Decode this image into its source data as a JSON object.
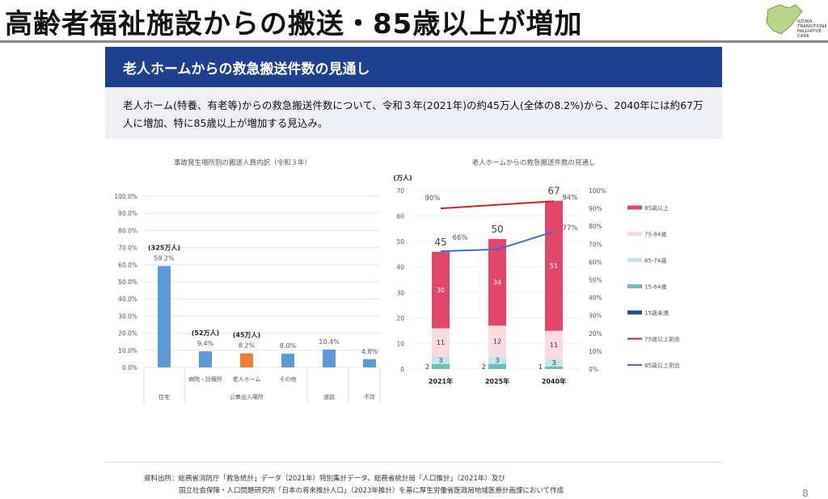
{
  "header": {
    "title": "高齢者福祉施設からの搬送・85歳以上が増加",
    "logo_text": "IIZUKA TRANSITIONAL & PALLIATIVE CARE"
  },
  "slide": {
    "banner": "老人ホームからの救急搬送件数の見通し",
    "summary": "老人ホーム(特養、有老等)からの救急搬送件数について、令和３年(2021年)の約45万人(全体の8.2%)から、2040年には約67万人に増加、特に85歳以上が増加する見込み。",
    "source_line1": "資料出所：総務省消防庁「救急統計」データ（2021年）特別集計データ、総務省統計局「人口推計」（2021年）及び",
    "source_line2": "国立社会保障・人口問題研究所「日本の将来推計人口」（2023年推計）を基に厚生労働省医政局地域医療計画課において作成",
    "page_number": "8"
  },
  "chart_data": [
    {
      "type": "bar",
      "title": "事故発生場所別の搬送人員内訳（令和３年）",
      "categories": [
        "住宅",
        "病院・診療所",
        "老人ホーム",
        "その他",
        "道路",
        "不詳"
      ],
      "groups": [
        "住宅",
        "公衆出入場所",
        "公衆出入場所",
        "公衆出入場所",
        "道路",
        "不詳"
      ],
      "group_labels": [
        "住宅",
        "公衆出入場所",
        "道路",
        "不詳"
      ],
      "values": [
        59.2,
        9.4,
        8.2,
        8.0,
        10.4,
        4.8
      ],
      "value_labels": [
        "59.2%",
        "9.4%",
        "8.2%",
        "8.0%",
        "10.4%",
        "4.8%"
      ],
      "count_labels": [
        "(325万人)",
        "(52万人)",
        "(45万人)",
        "",
        "",
        ""
      ],
      "colors": [
        "#5b9bd5",
        "#5b9bd5",
        "#ed7d31",
        "#5b9bd5",
        "#5b9bd5",
        "#5b9bd5"
      ],
      "ylim": [
        0,
        100
      ],
      "yticks": [
        "0.0%",
        "10.0%",
        "20.0%",
        "30.0%",
        "40.0%",
        "50.0%",
        "60.0%",
        "70.0%",
        "80.0%",
        "90.0%",
        "100.0%"
      ],
      "grid": true
    },
    {
      "type": "bar+line",
      "title": "老人ホームからの救急搬送件数の見通し",
      "ylabel": "(万人)",
      "categories": [
        "2021年",
        "2025年",
        "2040年"
      ],
      "totals": [
        45,
        50,
        67
      ],
      "series": [
        {
          "name": "15歳未満",
          "color": "#1f4e9a",
          "values": [
            0,
            0,
            0
          ]
        },
        {
          "name": "15-64歳",
          "color": "#6dbdb8",
          "values": [
            2,
            2,
            1
          ]
        },
        {
          "name": "65-74歳",
          "color": "#c5e6ea",
          "values": [
            3,
            3,
            3
          ]
        },
        {
          "name": "75-84歳",
          "color": "#f9dbe0",
          "values": [
            11,
            12,
            11
          ]
        },
        {
          "name": "85歳以上",
          "color": "#e0476a",
          "values": [
            30,
            34,
            51
          ]
        }
      ],
      "lines": [
        {
          "name": "75歳以上割合",
          "color": "#d62020",
          "values": [
            90,
            92,
            94
          ],
          "labels": [
            "90%",
            "",
            "94%"
          ]
        },
        {
          "name": "85歳以上割合",
          "color": "#3a6fe0",
          "values": [
            66,
            67,
            77
          ],
          "labels": [
            "66%",
            "",
            "77%"
          ]
        }
      ],
      "legend_order": [
        "85歳以上",
        "75-84歳",
        "65-74歳",
        "15-64歳",
        "15歳未満",
        "75歳以上割合",
        "85歳以上割合"
      ],
      "ylim": [
        0,
        70
      ],
      "yticks": [
        "0",
        "10",
        "20",
        "30",
        "40",
        "50",
        "60",
        "70"
      ],
      "y2lim": [
        0,
        100
      ],
      "y2ticks": [
        "0%",
        "10%",
        "20%",
        "30%",
        "40%",
        "50%",
        "60%",
        "70%",
        "80%",
        "90%",
        "100%"
      ],
      "legend": "right"
    }
  ]
}
